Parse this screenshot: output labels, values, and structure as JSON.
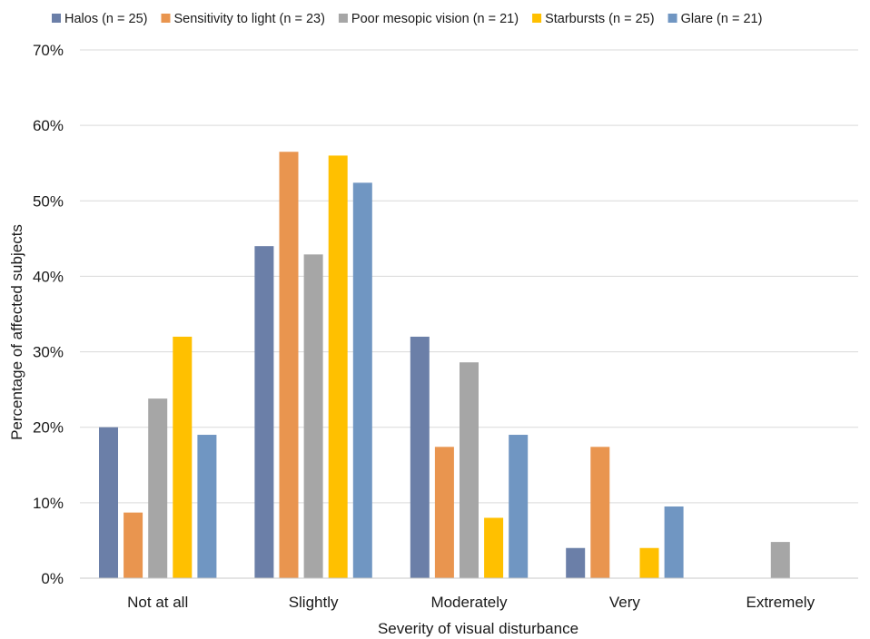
{
  "chart_data": {
    "type": "bar",
    "title": "",
    "xlabel": "Severity of visual disturbance",
    "ylabel": "Percentage of affected subjects",
    "ylim": [
      0,
      70
    ],
    "yticks": [
      0,
      10,
      20,
      30,
      40,
      50,
      60,
      70
    ],
    "ytick_suffix": "%",
    "grid": true,
    "legend_position": "top",
    "categories": [
      "Not at all",
      "Slightly",
      "Moderately",
      "Very",
      "Extremely"
    ],
    "series": [
      {
        "name": "Halos (n = 25)",
        "color": "#6b7fa8",
        "values": [
          20,
          44,
          32,
          4,
          0
        ]
      },
      {
        "name": "Sensitivity to light (n = 23)",
        "color": "#e9954f",
        "values": [
          8.7,
          56.5,
          17.4,
          17.4,
          0
        ]
      },
      {
        "name": "Poor mesopic vision (n = 21)",
        "color": "#a6a6a6",
        "values": [
          23.8,
          42.9,
          28.6,
          0,
          4.8
        ]
      },
      {
        "name": "Starbursts (n = 25)",
        "color": "#ffc000",
        "values": [
          32,
          56,
          8,
          4,
          0
        ]
      },
      {
        "name": "Glare (n = 21)",
        "color": "#7096c2",
        "values": [
          19,
          52.4,
          19,
          9.5,
          0
        ]
      }
    ]
  }
}
